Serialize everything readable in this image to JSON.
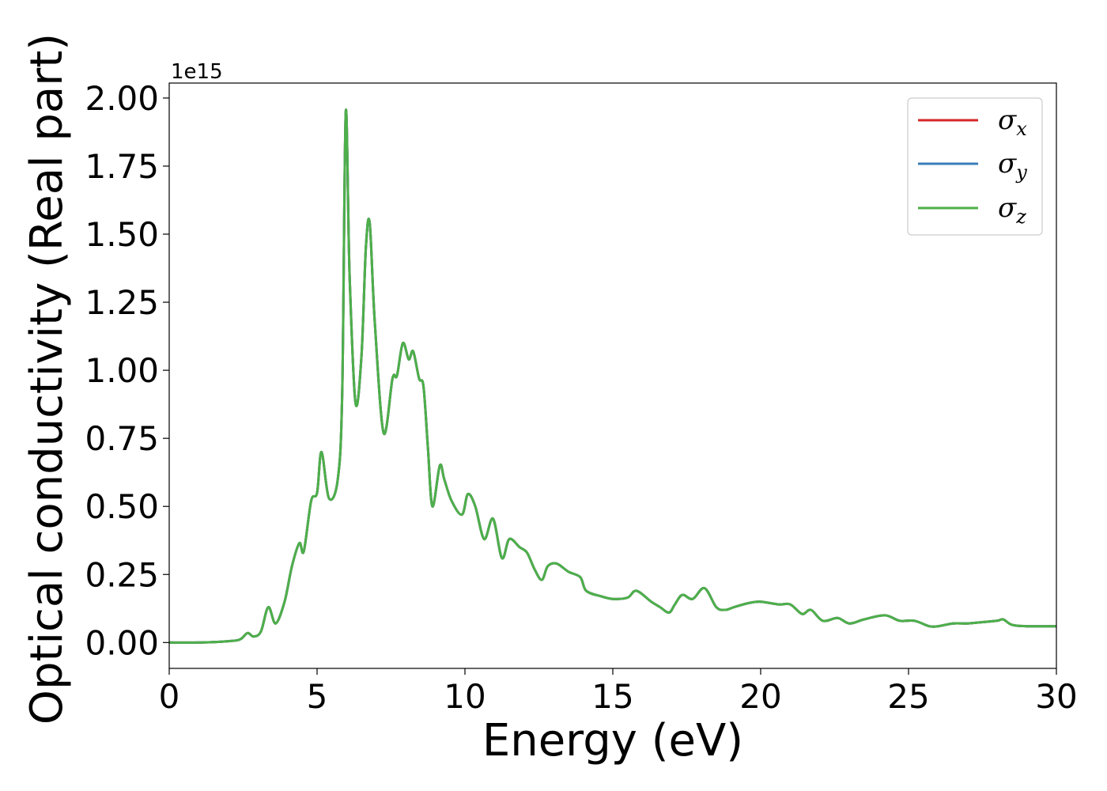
{
  "chart_data": {
    "type": "line",
    "xlabel": "Energy (eV)",
    "ylabel": "Optical conductivity (Real part)",
    "y_offset_label": "1e15",
    "xlim": [
      0,
      30
    ],
    "ylim": [
      -0.095,
      2.055
    ],
    "x_ticks": [
      "0",
      "5",
      "10",
      "15",
      "20",
      "25",
      "30"
    ],
    "x_tick_values": [
      0,
      5,
      10,
      15,
      20,
      25,
      30
    ],
    "y_ticks": [
      "0.00",
      "0.25",
      "0.50",
      "0.75",
      "1.00",
      "1.25",
      "1.50",
      "1.75",
      "2.00"
    ],
    "y_tick_values": [
      0,
      0.25,
      0.5,
      0.75,
      1.0,
      1.25,
      1.5,
      1.75,
      2.0
    ],
    "grid": false,
    "legend_position": "top-right",
    "x": [
      0,
      1,
      2,
      2.4,
      2.65,
      2.85,
      3.1,
      3.35,
      3.6,
      3.9,
      4.15,
      4.4,
      4.55,
      4.8,
      5.0,
      5.15,
      5.4,
      5.7,
      5.85,
      5.97,
      6.1,
      6.3,
      6.5,
      6.65,
      6.78,
      6.95,
      7.25,
      7.55,
      7.7,
      7.9,
      8.1,
      8.25,
      8.45,
      8.6,
      8.75,
      8.9,
      9.15,
      9.3,
      9.55,
      9.9,
      10.1,
      10.35,
      10.65,
      10.95,
      11.25,
      11.5,
      11.85,
      12.1,
      12.35,
      12.6,
      12.8,
      13.1,
      13.5,
      13.9,
      14.1,
      14.6,
      15.0,
      15.5,
      15.8,
      16.3,
      16.6,
      16.9,
      17.1,
      17.35,
      17.7,
      18.1,
      18.5,
      18.8,
      19.1,
      19.6,
      20.0,
      20.6,
      21.0,
      21.4,
      21.7,
      22.1,
      22.6,
      23.0,
      23.5,
      24.2,
      24.7,
      25.2,
      25.7,
      26.0,
      26.5,
      27.0,
      27.5,
      28.0,
      28.2,
      28.5,
      29.0,
      29.5,
      30.0
    ],
    "series": [
      {
        "name": "σx",
        "color": "#d62728",
        "values": [
          0,
          0,
          0.005,
          0.012,
          0.035,
          0.022,
          0.04,
          0.13,
          0.07,
          0.15,
          0.28,
          0.365,
          0.335,
          0.52,
          0.55,
          0.7,
          0.53,
          0.6,
          0.92,
          1.95,
          1.35,
          0.88,
          1.05,
          1.45,
          1.54,
          1.18,
          0.77,
          0.97,
          0.98,
          1.1,
          1.04,
          1.07,
          0.97,
          0.94,
          0.71,
          0.5,
          0.65,
          0.6,
          0.52,
          0.47,
          0.545,
          0.5,
          0.38,
          0.455,
          0.31,
          0.38,
          0.35,
          0.33,
          0.27,
          0.23,
          0.28,
          0.29,
          0.26,
          0.24,
          0.19,
          0.17,
          0.16,
          0.165,
          0.19,
          0.15,
          0.13,
          0.11,
          0.14,
          0.175,
          0.16,
          0.2,
          0.13,
          0.12,
          0.13,
          0.145,
          0.15,
          0.14,
          0.14,
          0.105,
          0.12,
          0.08,
          0.09,
          0.07,
          0.085,
          0.1,
          0.08,
          0.08,
          0.06,
          0.06,
          0.07,
          0.07,
          0.075,
          0.08,
          0.085,
          0.065,
          0.06,
          0.06,
          0.06
        ]
      },
      {
        "name": "σy",
        "color": "#377eb8",
        "values": [
          0,
          0,
          0.005,
          0.012,
          0.035,
          0.022,
          0.04,
          0.13,
          0.07,
          0.15,
          0.28,
          0.365,
          0.335,
          0.52,
          0.55,
          0.7,
          0.53,
          0.6,
          0.92,
          1.95,
          1.35,
          0.88,
          1.05,
          1.45,
          1.54,
          1.18,
          0.77,
          0.97,
          0.98,
          1.1,
          1.04,
          1.07,
          0.97,
          0.94,
          0.71,
          0.5,
          0.65,
          0.6,
          0.52,
          0.47,
          0.545,
          0.5,
          0.38,
          0.455,
          0.31,
          0.38,
          0.35,
          0.33,
          0.27,
          0.23,
          0.28,
          0.29,
          0.26,
          0.24,
          0.19,
          0.17,
          0.16,
          0.165,
          0.19,
          0.15,
          0.13,
          0.11,
          0.14,
          0.175,
          0.16,
          0.2,
          0.13,
          0.12,
          0.13,
          0.145,
          0.15,
          0.14,
          0.14,
          0.105,
          0.12,
          0.08,
          0.09,
          0.07,
          0.085,
          0.1,
          0.08,
          0.08,
          0.06,
          0.06,
          0.07,
          0.07,
          0.075,
          0.08,
          0.085,
          0.065,
          0.06,
          0.06,
          0.06
        ]
      },
      {
        "name": "σz",
        "color": "#4daf4a",
        "values": [
          0,
          0,
          0.005,
          0.012,
          0.035,
          0.022,
          0.04,
          0.13,
          0.07,
          0.15,
          0.28,
          0.365,
          0.335,
          0.52,
          0.55,
          0.7,
          0.53,
          0.6,
          0.92,
          1.95,
          1.35,
          0.88,
          1.05,
          1.45,
          1.54,
          1.18,
          0.77,
          0.97,
          0.98,
          1.1,
          1.04,
          1.07,
          0.97,
          0.94,
          0.71,
          0.5,
          0.65,
          0.6,
          0.52,
          0.47,
          0.545,
          0.5,
          0.38,
          0.455,
          0.31,
          0.38,
          0.35,
          0.33,
          0.27,
          0.23,
          0.28,
          0.29,
          0.26,
          0.24,
          0.19,
          0.17,
          0.16,
          0.165,
          0.19,
          0.15,
          0.13,
          0.11,
          0.14,
          0.175,
          0.16,
          0.2,
          0.13,
          0.12,
          0.13,
          0.145,
          0.15,
          0.14,
          0.14,
          0.105,
          0.12,
          0.08,
          0.09,
          0.07,
          0.085,
          0.1,
          0.08,
          0.08,
          0.06,
          0.06,
          0.07,
          0.07,
          0.075,
          0.08,
          0.085,
          0.065,
          0.06,
          0.06,
          0.06
        ]
      }
    ],
    "legend": [
      {
        "symbol": "σ",
        "sub": "x",
        "color": "#d62728"
      },
      {
        "symbol": "σ",
        "sub": "y",
        "color": "#377eb8"
      },
      {
        "symbol": "σ",
        "sub": "z",
        "color": "#4daf4a"
      }
    ]
  }
}
